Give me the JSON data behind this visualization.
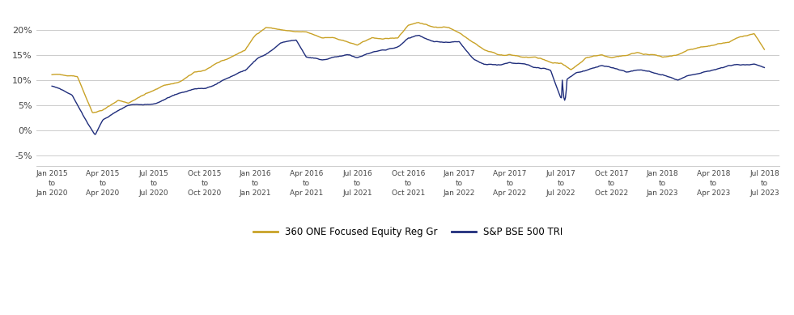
{
  "title": "",
  "xlabel": "",
  "ylabel": "",
  "ylim": [
    -0.07,
    0.235
  ],
  "yticks": [
    -0.05,
    0.0,
    0.05,
    0.1,
    0.15,
    0.2
  ],
  "ytick_labels": [
    "-5%",
    "0%",
    "5%",
    "10%",
    "15%",
    "20%"
  ],
  "x_labels": [
    "Jan 2015\nto\nJan 2020",
    "Apr 2015\nto\nApr 2020",
    "Jul 2015\nto\nJul 2020",
    "Oct 2015\nto\nOct 2020",
    "Jan 2016\nto\nJan 2021",
    "Apr 2016\nto\nApr 2021",
    "Jul 2016\nto\nJul 2021",
    "Oct 2016\nto\nOct 2021",
    "Jan 2017\nto\nJan 2022",
    "Apr 2017\nto\nApr 2022",
    "Jul 2017\nto\nJul 2022",
    "Oct 2017\nto\nOct 2022",
    "Jan 2018\nto\nJan 2023",
    "Apr 2018\nto\nApr 2023",
    "Jul 2018\nto\nJul 2023"
  ],
  "num_ticks": 15,
  "line1_color": "#C9A227",
  "line2_color": "#1F2D7B",
  "line1_label": "360 ONE Focused Equity Reg Gr",
  "line2_label": "S&P BSE 500 TRI",
  "background_color": "#FFFFFF",
  "grid_color": "#CCCCCC",
  "line_width": 1.0,
  "legend_dash_color1": "#C9A227",
  "legend_dash_color2": "#1F2D7B"
}
